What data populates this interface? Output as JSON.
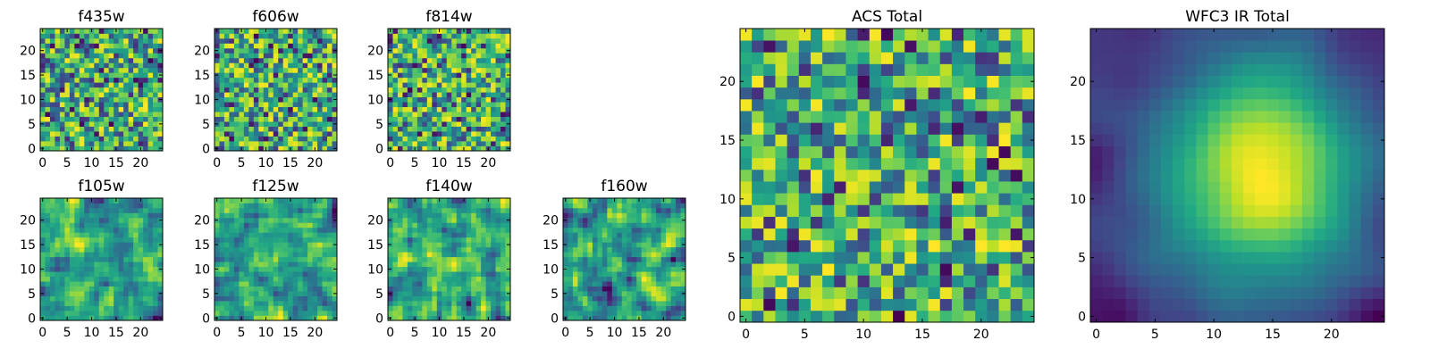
{
  "chart_data": [
    {
      "type": "heatmap",
      "title": "f435w",
      "grid_size": 25,
      "xlim": [
        0,
        24
      ],
      "ylim": [
        0,
        24
      ],
      "xticks": [
        "0",
        "5",
        "10",
        "15",
        "20"
      ],
      "yticks": [
        "0",
        "5",
        "10",
        "15",
        "20"
      ],
      "colormap": "viridis",
      "texture": "noise",
      "seed": 11
    },
    {
      "type": "heatmap",
      "title": "f606w",
      "grid_size": 25,
      "xlim": [
        0,
        24
      ],
      "ylim": [
        0,
        24
      ],
      "xticks": [
        "0",
        "5",
        "10",
        "15",
        "20"
      ],
      "yticks": [
        "0",
        "5",
        "10",
        "15",
        "20"
      ],
      "colormap": "viridis",
      "texture": "noise",
      "seed": 23
    },
    {
      "type": "heatmap",
      "title": "f814w",
      "grid_size": 25,
      "xlim": [
        0,
        24
      ],
      "ylim": [
        0,
        24
      ],
      "xticks": [
        "0",
        "5",
        "10",
        "15",
        "20"
      ],
      "yticks": [
        "0",
        "5",
        "10",
        "15",
        "20"
      ],
      "colormap": "viridis",
      "texture": "noise",
      "seed": 37
    },
    {
      "type": "heatmap",
      "title": "f105w",
      "grid_size": 25,
      "xlim": [
        0,
        24
      ],
      "ylim": [
        0,
        24
      ],
      "xticks": [
        "0",
        "5",
        "10",
        "15",
        "20"
      ],
      "yticks": [
        "0",
        "5",
        "10",
        "15",
        "20"
      ],
      "colormap": "viridis",
      "texture": "smooth",
      "seed": 41
    },
    {
      "type": "heatmap",
      "title": "f125w",
      "grid_size": 25,
      "xlim": [
        0,
        24
      ],
      "ylim": [
        0,
        24
      ],
      "xticks": [
        "0",
        "5",
        "10",
        "15",
        "20"
      ],
      "yticks": [
        "0",
        "5",
        "10",
        "15",
        "20"
      ],
      "colormap": "viridis",
      "texture": "smooth",
      "seed": 53
    },
    {
      "type": "heatmap",
      "title": "f140w",
      "grid_size": 25,
      "xlim": [
        0,
        24
      ],
      "ylim": [
        0,
        24
      ],
      "xticks": [
        "0",
        "5",
        "10",
        "15",
        "20"
      ],
      "yticks": [
        "0",
        "5",
        "10",
        "15",
        "20"
      ],
      "colormap": "viridis",
      "texture": "smooth",
      "seed": 67
    },
    {
      "type": "heatmap",
      "title": "f160w",
      "grid_size": 25,
      "xlim": [
        0,
        24
      ],
      "ylim": [
        0,
        24
      ],
      "xticks": [
        "0",
        "5",
        "10",
        "15",
        "20"
      ],
      "yticks": [
        "0",
        "5",
        "10",
        "15",
        "20"
      ],
      "colormap": "viridis",
      "texture": "smooth",
      "seed": 79
    },
    {
      "type": "heatmap",
      "title": "ACS Total",
      "grid_size": 25,
      "xlim": [
        0,
        24
      ],
      "ylim": [
        0,
        24
      ],
      "xticks": [
        "0",
        "5",
        "10",
        "15",
        "20"
      ],
      "yticks": [
        "0",
        "5",
        "10",
        "15",
        "20"
      ],
      "colormap": "viridis",
      "texture": "noise",
      "seed": 97
    },
    {
      "type": "heatmap",
      "title": "WFC3 IR Total",
      "grid_size": 25,
      "xlim": [
        0,
        24
      ],
      "ylim": [
        0,
        24
      ],
      "xticks": [
        "0",
        "5",
        "10",
        "15",
        "20"
      ],
      "yticks": [
        "0",
        "5",
        "10",
        "15",
        "20"
      ],
      "colormap": "viridis",
      "texture": "blob",
      "seed": 131
    }
  ]
}
